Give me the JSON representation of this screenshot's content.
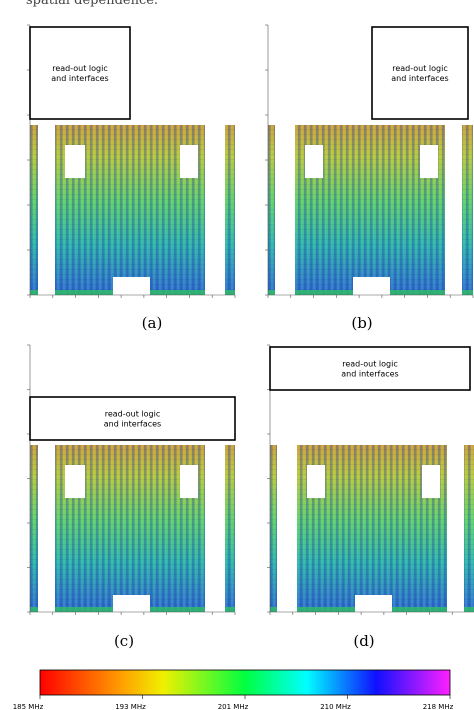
{
  "caption_fragment": "spatial dependence.",
  "panels": [
    {
      "label": "(a)",
      "box_text": [
        "read-out logic",
        "and interfaces"
      ]
    },
    {
      "label": "(b)",
      "box_text": [
        "read-out logic",
        "and interfaces"
      ]
    },
    {
      "label": "(c)",
      "box_text": [
        "read-out logic",
        "and interfaces"
      ]
    },
    {
      "label": "(d)",
      "box_text": [
        "read-out logic",
        "and interfaces"
      ]
    }
  ],
  "colorbar": {
    "ticks": [
      "185 MHz",
      "193 MHz",
      "201 MHz",
      "210 MHz",
      "218 MHz"
    ]
  }
}
